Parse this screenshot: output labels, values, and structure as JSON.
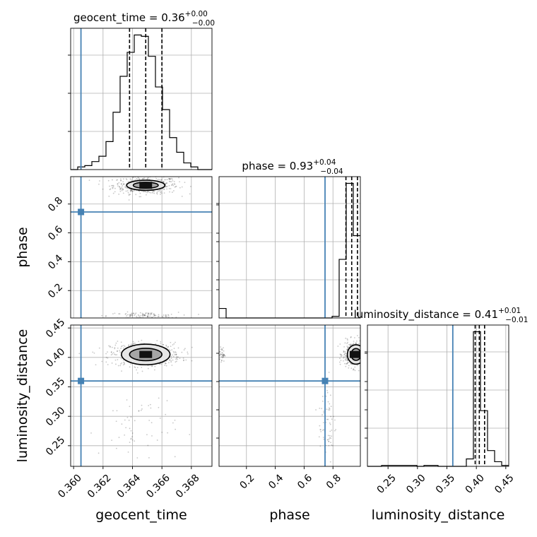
{
  "chart_data": {
    "type": "corner",
    "parameters": [
      "geocent_time",
      "phase",
      "luminosity_distance"
    ],
    "axis_labels": {
      "geocent_time": "geocent_time",
      "phase": "phase",
      "luminosity_distance": "luminosity_distance"
    },
    "truth_color": "#4682b4",
    "ranges": {
      "geocent_time": [
        0.3598,
        0.3694
      ],
      "phase": [
        0.01,
        0.99
      ],
      "luminosity_distance": [
        0.215,
        0.455
      ]
    },
    "truths": {
      "geocent_time": 0.3605,
      "phase": 0.745,
      "luminosity_distance": 0.36
    },
    "ticks": {
      "geocent_time": [
        "0.360",
        "0.362",
        "0.364",
        "0.366",
        "0.368"
      ],
      "phase": [
        "0.2",
        "0.4",
        "0.6",
        "0.8"
      ],
      "luminosity_distance": [
        "0.25",
        "0.30",
        "0.35",
        "0.40",
        "0.45"
      ]
    },
    "ticks_numeric": {
      "geocent_time": [
        0.36,
        0.362,
        0.364,
        0.366,
        0.368
      ],
      "phase": [
        0.2,
        0.4,
        0.6,
        0.8
      ],
      "luminosity_distance": [
        0.25,
        0.3,
        0.35,
        0.4,
        0.45
      ]
    },
    "titles": {
      "geocent_time": {
        "label": "geocent_time = 0.36",
        "plus": "+0.00",
        "minus": "−0.00"
      },
      "phase": {
        "label": "phase = 0.93",
        "plus": "+0.04",
        "minus": "−0.04"
      },
      "luminosity_distance": {
        "label": "luminosity_distance = 0.41",
        "plus": "+0.01",
        "minus": "−0.01"
      }
    },
    "quantiles": {
      "geocent_time": [
        0.3638,
        0.3649,
        0.366
      ],
      "phase": [
        0.89,
        0.93,
        0.97
      ],
      "luminosity_distance": [
        0.398,
        0.405,
        0.414
      ]
    },
    "hist_1d": {
      "geocent_time": {
        "edges": [
          0.3598,
          0.36028,
          0.36076,
          0.36124,
          0.36172,
          0.3622,
          0.36268,
          0.36316,
          0.36364,
          0.36412,
          0.3646,
          0.36508,
          0.36556,
          0.36604,
          0.36652,
          0.367,
          0.36748,
          0.36796,
          0.36844,
          0.36892,
          0.3694
        ],
        "counts": [
          0,
          2,
          3,
          6,
          10,
          21,
          43,
          70,
          88,
          101,
          100,
          85,
          62,
          45,
          24,
          13,
          5,
          2,
          0,
          0
        ]
      },
      "phase": {
        "edges": [
          0.01,
          0.059,
          0.108,
          0.157,
          0.206,
          0.255,
          0.304,
          0.353,
          0.402,
          0.451,
          0.5,
          0.549,
          0.598,
          0.647,
          0.696,
          0.745,
          0.794,
          0.843,
          0.892,
          0.941,
          0.99
        ],
        "counts": [
          6,
          0,
          0,
          0,
          0,
          0,
          0,
          0,
          0,
          0,
          0,
          0,
          0,
          0,
          0,
          0,
          1,
          37,
          85,
          52
        ]
      },
      "luminosity_distance": {
        "edges": [
          0.215,
          0.227,
          0.239,
          0.251,
          0.263,
          0.275,
          0.287,
          0.299,
          0.311,
          0.323,
          0.335,
          0.347,
          0.359,
          0.371,
          0.383,
          0.395,
          0.407,
          0.419,
          0.431,
          0.443,
          0.455
        ],
        "counts": [
          0,
          0,
          1,
          1,
          1,
          1,
          1,
          0,
          1,
          1,
          0,
          0,
          0,
          0,
          8,
          145,
          60,
          17,
          5,
          1
        ]
      }
    },
    "samples_2d": {
      "phase_vs_geocent_time": {
        "clusters": [
          {
            "cx": 0.3649,
            "cy": 0.93,
            "sx": 0.0011,
            "sy": 0.03,
            "n": 500
          },
          {
            "cx": 0.3647,
            "cy": 0.025,
            "sx": 0.0012,
            "sy": 0.012,
            "n": 110
          }
        ]
      },
      "luminosity_distance_vs_geocent_time": {
        "clusters": [
          {
            "cx": 0.3649,
            "cy": 0.405,
            "sx": 0.0012,
            "sy": 0.01,
            "n": 520
          },
          {
            "cx": 0.3643,
            "cy": 0.28,
            "sx": 0.0013,
            "sy": 0.035,
            "n": 60
          }
        ]
      },
      "luminosity_distance_vs_phase": {
        "clusters": [
          {
            "cx": 0.94,
            "cy": 0.405,
            "sx": 0.035,
            "sy": 0.011,
            "n": 420
          },
          {
            "cx": 0.03,
            "cy": 0.405,
            "sx": 0.01,
            "sy": 0.006,
            "n": 40
          },
          {
            "cx": 0.76,
            "cy": 0.29,
            "sx": 0.03,
            "sy": 0.04,
            "n": 70
          }
        ]
      }
    },
    "contours": {
      "phase_vs_geocent_time": {
        "cx": 0.3649,
        "cy": 0.93,
        "levels": [
          [
            0.0013,
            0.035
          ],
          [
            0.00085,
            0.021
          ]
        ]
      },
      "luminosity_distance_vs_geocent_time": {
        "cx": 0.3649,
        "cy": 0.405,
        "levels": [
          [
            0.00165,
            0.0175
          ],
          [
            0.0011,
            0.0105
          ]
        ]
      },
      "luminosity_distance_vs_phase": {
        "cx": 0.96,
        "cy": 0.405,
        "levels": [
          [
            0.06,
            0.0165
          ],
          [
            0.035,
            0.01
          ]
        ]
      }
    },
    "grid": true,
    "legend": "none"
  }
}
